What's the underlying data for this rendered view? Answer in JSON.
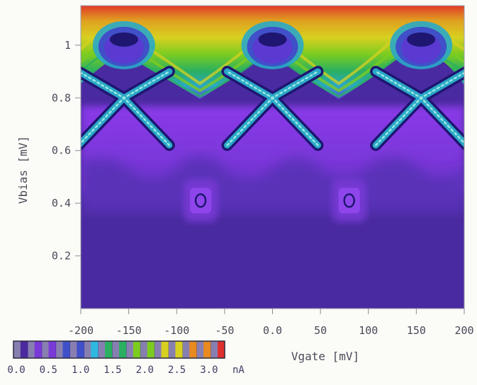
{
  "chart_data": {
    "type": "heatmap",
    "title": "",
    "xlabel": "Vgate [mV]",
    "ylabel": "Vbias [mV]",
    "xlim": [
      -200,
      200
    ],
    "ylim": [
      0,
      1.15
    ],
    "x_ticks": [
      -200,
      -150,
      -100,
      -50,
      0.0,
      50,
      100,
      150,
      200
    ],
    "x_tick_labels": [
      "-200",
      "-150",
      "-100",
      "-50",
      "0.0",
      "50",
      "100",
      "150",
      "200"
    ],
    "y_ticks": [
      0.2,
      0.4,
      0.6,
      0.8,
      1.0
    ],
    "y_tick_labels": [
      "0.2",
      "0.4",
      "0.6",
      "0.8",
      "1"
    ],
    "grid": false,
    "colorbar": {
      "unit": "nA",
      "range": [
        0.0,
        3.2
      ],
      "tick_labels": [
        "0.0",
        "0.5",
        "1.0",
        "1.5",
        "2.0",
        "2.5",
        "3.0"
      ],
      "tick_values": [
        0.0,
        0.5,
        1.0,
        1.5,
        2.0,
        2.5,
        3.0
      ],
      "colors": [
        "#4a2a9e",
        "#7a3ad8",
        "#4050c8",
        "#30b8e0",
        "#2ab060",
        "#7ccc20",
        "#d8d020",
        "#e88a20",
        "#e03030"
      ]
    },
    "features": {
      "period_mV": 160,
      "x_centers_mV": [
        -155,
        0,
        155
      ],
      "bright_spot_x_mV": [
        -75,
        80
      ],
      "bright_spot_vbias_mV": 0.41,
      "gap_edge_vbias_mV": 0.6,
      "x_pattern_center_vbias_mV": 0.8,
      "upper_lobe_vbias_mV": 1.0
    }
  }
}
